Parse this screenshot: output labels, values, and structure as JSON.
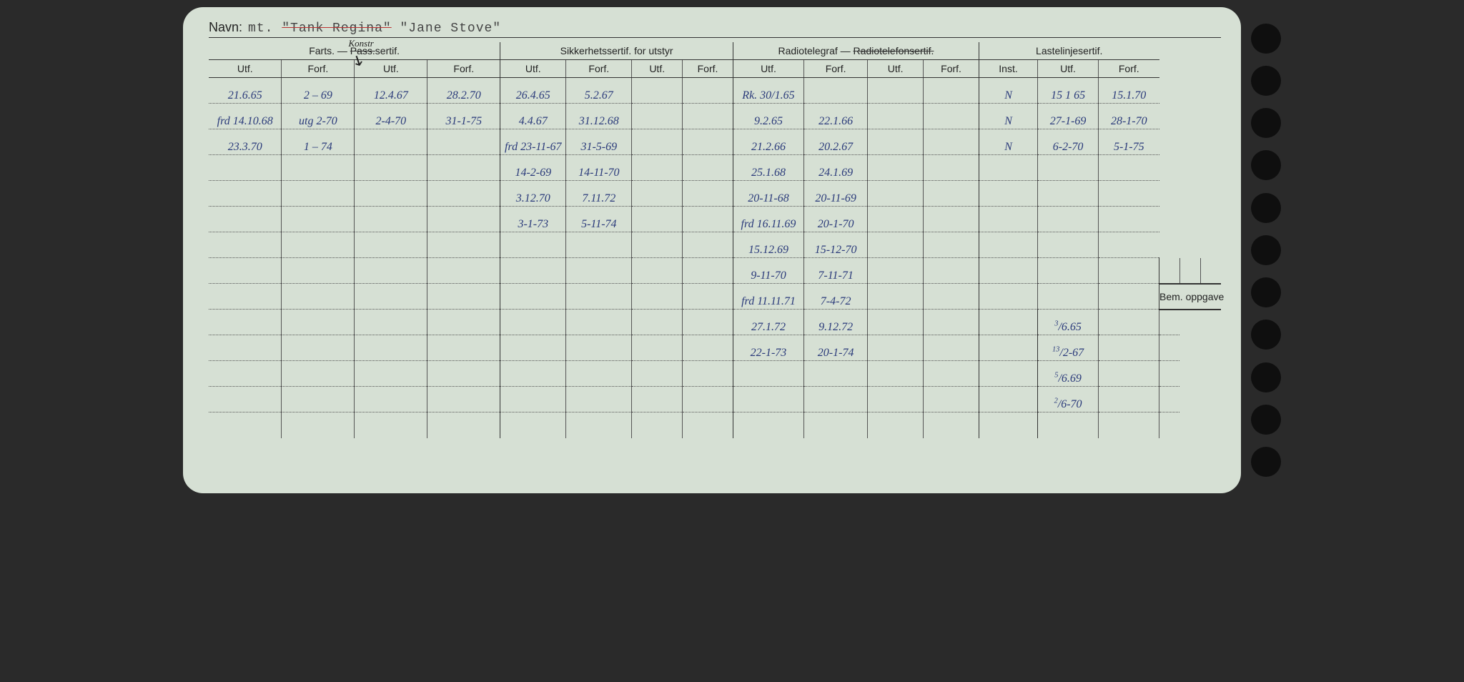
{
  "card_bg": "#d6e0d4",
  "labels": {
    "navn": "Navn:",
    "farts": "Farts. —",
    "pass_sertif_struck": "Pass.",
    "sertif_suffix": "sertif.",
    "konstr_annot": "Konstr",
    "sikkerhet": "Sikkerhetssertif. for utstyr",
    "radiotelegraf": "Radiotelegraf —",
    "radiotelefon_struck": "Radiotelefonsertif.",
    "lastelinje": "Lastelinjesertif.",
    "utf": "Utf.",
    "forf": "Forf.",
    "inst": "Inst.",
    "bem": "Bem. oppgave"
  },
  "navn_value_prefix": "mt. ",
  "navn_struck": "\"Tank Regina\"",
  "navn_value_suffix": " \"Jane Stove\"",
  "columns_count": 15,
  "rows": [
    {
      "c": [
        "21.6.65",
        "2 – 69",
        "12.4.67",
        "28.2.70",
        "26.4.65",
        "5.2.67",
        "",
        "",
        "Rk. 30/1.65",
        "",
        "",
        "",
        "N",
        "15 1 65",
        "15.1.70"
      ]
    },
    {
      "c": [
        "frd 14.10.68",
        "utg 2-70",
        "2-4-70",
        "31-1-75",
        "4.4.67",
        "31.12.68",
        "",
        "",
        "9.2.65",
        "22.1.66",
        "",
        "",
        "N",
        "27-1-69",
        "28-1-70"
      ]
    },
    {
      "c": [
        "23.3.70",
        "1 – 74",
        "",
        "",
        "frd 23-11-67",
        "31-5-69",
        "",
        "",
        "21.2.66",
        "20.2.67",
        "",
        "",
        "N",
        "6-2-70",
        "5-1-75"
      ]
    },
    {
      "c": [
        "",
        "",
        "",
        "",
        "14-2-69",
        "14-11-70",
        "",
        "",
        "25.1.68",
        "24.1.69",
        "",
        "",
        "",
        "",
        ""
      ]
    },
    {
      "c": [
        "",
        "",
        "",
        "",
        "3.12.70",
        "7.11.72",
        "",
        "",
        "20-11-68",
        "20-11-69",
        "",
        "",
        "",
        "",
        ""
      ]
    },
    {
      "c": [
        "",
        "",
        "",
        "",
        "3-1-73",
        "5-11-74",
        "",
        "",
        "frd 16.11.69",
        "20-1-70",
        "",
        "",
        "",
        "",
        ""
      ]
    },
    {
      "c": [
        "",
        "",
        "",
        "",
        "",
        "",
        "",
        "",
        "15.12.69",
        "15-12-70",
        "",
        "",
        "",
        "",
        ""
      ]
    },
    {
      "c": [
        "",
        "",
        "",
        "",
        "",
        "",
        "",
        "",
        "9-11-70",
        "7-11-71",
        "",
        "",
        "",
        "",
        ""
      ],
      "bem_starts_after": true
    },
    {
      "c": [
        "",
        "",
        "",
        "",
        "",
        "",
        "",
        "",
        "frd 11.11.71",
        "7-4-72",
        "",
        "",
        "",
        "",
        ""
      ],
      "bem_row": true
    },
    {
      "c": [
        "",
        "",
        "",
        "",
        "",
        "",
        "",
        "",
        "27.1.72",
        "9.12.72",
        "",
        "",
        ""
      ],
      "tail": [
        "3/6.65",
        "",
        ""
      ]
    },
    {
      "c": [
        "",
        "",
        "",
        "",
        "",
        "",
        "",
        "",
        "22-1-73",
        "20-1-74",
        "",
        "",
        ""
      ],
      "tail": [
        "13/2-67",
        "",
        ""
      ]
    },
    {
      "c": [
        "",
        "",
        "",
        "",
        "",
        "",
        "",
        "",
        "",
        "",
        "",
        "",
        ""
      ],
      "tail": [
        "5/6.69",
        "",
        ""
      ]
    },
    {
      "c": [
        "",
        "",
        "",
        "",
        "",
        "",
        "",
        "",
        "",
        "",
        "",
        "",
        ""
      ],
      "tail": [
        "2/6-70",
        "",
        ""
      ]
    },
    {
      "c": [
        "",
        "",
        "",
        "",
        "",
        "",
        "",
        "",
        "",
        "",
        "",
        "",
        ""
      ],
      "tail": [
        "",
        "",
        ""
      ]
    }
  ]
}
